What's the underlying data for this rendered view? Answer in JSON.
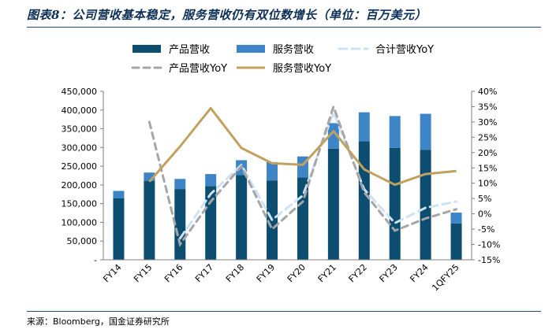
{
  "figure": {
    "title": "图表8：公司营收基本稳定，服务营收仍有双位数增长（单位：百万美元）",
    "source": "来源：Bloomberg，国金证券研究所"
  },
  "colors": {
    "product": "#0d4d70",
    "service": "#3d85c6",
    "total_yoy": "#cfe2f3",
    "product_yoy": "#a6a6a6",
    "service_yoy": "#c2a15e",
    "rule": "#1f4e79"
  },
  "chart_data": {
    "type": "bar",
    "stacked": true,
    "categories": [
      "FY14",
      "FY15",
      "FY16",
      "FY17",
      "FY18",
      "FY19",
      "FY20",
      "FY21",
      "FY22",
      "FY23",
      "FY24",
      "1QFY25"
    ],
    "series": [
      {
        "name": "产品营收",
        "axis": "left",
        "kind": "bar",
        "values": [
          164000,
          211000,
          189000,
          197000,
          226000,
          212000,
          220000,
          297000,
          317000,
          299000,
          294000,
          97000
        ]
      },
      {
        "name": "服务营收",
        "axis": "left",
        "kind": "bar",
        "values": [
          20000,
          22000,
          27000,
          32000,
          40000,
          49000,
          56000,
          68000,
          77000,
          85000,
          96000,
          29000
        ]
      },
      {
        "name": "合计营收YoY",
        "axis": "right",
        "kind": "line",
        "style": "dashed-light",
        "values": [
          null,
          null,
          -8.0,
          6.5,
          16.0,
          -2.0,
          6.0,
          33.0,
          8.0,
          -3.0,
          2.0,
          4.0
        ]
      },
      {
        "name": "产品营收YoY",
        "axis": "right",
        "kind": "line",
        "style": "dashed-grey",
        "values": [
          null,
          30.0,
          -10.0,
          4.0,
          15.5,
          -5.0,
          4.0,
          35.0,
          7.0,
          -5.5,
          -1.5,
          1.5
        ]
      },
      {
        "name": "服务营收YoY",
        "axis": "right",
        "kind": "line",
        "style": "solid",
        "values": [
          null,
          10.5,
          22.0,
          34.5,
          21.5,
          16.5,
          16.0,
          27.0,
          14.5,
          9.5,
          13.0,
          14.0
        ]
      }
    ],
    "legend": [
      "产品营收",
      "服务营收",
      "合计营收YoY",
      "产品营收YoY",
      "服务营收YoY"
    ],
    "legend_position": "top",
    "left_axis": {
      "min": 0,
      "max": 450000,
      "step": 50000,
      "tick_labels": [
        "-",
        "50,000",
        "100,000",
        "150,000",
        "200,000",
        "250,000",
        "300,000",
        "350,000",
        "400,000",
        "450,000"
      ]
    },
    "right_axis": {
      "min": -15,
      "max": 40,
      "step": 5,
      "tick_labels": [
        "-15%",
        "-10%",
        "-5%",
        "0%",
        "5%",
        "10%",
        "15%",
        "20%",
        "25%",
        "30%",
        "35%",
        "40%"
      ]
    },
    "xlabel": "",
    "ylabel": ""
  }
}
